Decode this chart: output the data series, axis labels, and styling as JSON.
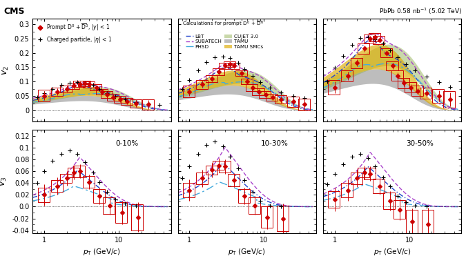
{
  "cms_label": "CMS",
  "top_right_label": "PbPb 0.58 nb$^{-1}$ (5.02 TeV)",
  "centrality_labels": [
    "0-10%",
    "10-30%",
    "30-50%"
  ],
  "v2_ylim": [
    -0.04,
    0.32
  ],
  "v3_ylim": [
    -0.045,
    0.13
  ],
  "xlim": [
    0.7,
    50
  ],
  "colors": {
    "D0": "#cc0000",
    "charged": "#000000",
    "LBT": "#2244cc",
    "PHSD": "#44aadd",
    "TAMU": "#888888",
    "SUBATECH": "#aa44cc",
    "CUJET": "#88aa44",
    "TAMU_SMC": "#ddaa00"
  },
  "v2_D0": {
    "010": {
      "pt": [
        1.0,
        1.5,
        2.0,
        2.5,
        3.0,
        3.5,
        4.0,
        5.0,
        6.0,
        7.0,
        8.5,
        10.5,
        13.0,
        17.0,
        25.0
      ],
      "val": [
        0.051,
        0.065,
        0.075,
        0.085,
        0.092,
        0.093,
        0.09,
        0.08,
        0.065,
        0.055,
        0.045,
        0.038,
        0.03,
        0.023,
        0.02
      ],
      "err": [
        0.015,
        0.012,
        0.01,
        0.01,
        0.008,
        0.008,
        0.008,
        0.008,
        0.008,
        0.01,
        0.01,
        0.01,
        0.01,
        0.012,
        0.015
      ],
      "sys": [
        0.02,
        0.015,
        0.012,
        0.012,
        0.01,
        0.01,
        0.01,
        0.01,
        0.01,
        0.012,
        0.012,
        0.012,
        0.012,
        0.015,
        0.018
      ]
    },
    "1030": {
      "pt": [
        1.0,
        1.5,
        2.0,
        2.5,
        3.0,
        3.5,
        4.0,
        5.0,
        6.0,
        7.0,
        8.5,
        10.5,
        13.0,
        17.0,
        25.0,
        35.0
      ],
      "val": [
        0.065,
        0.09,
        0.11,
        0.135,
        0.155,
        0.16,
        0.155,
        0.13,
        0.1,
        0.08,
        0.065,
        0.055,
        0.045,
        0.038,
        0.03,
        0.02
      ],
      "err": [
        0.015,
        0.012,
        0.01,
        0.01,
        0.008,
        0.008,
        0.008,
        0.008,
        0.008,
        0.01,
        0.01,
        0.01,
        0.01,
        0.012,
        0.015,
        0.02
      ],
      "sys": [
        0.02,
        0.015,
        0.012,
        0.012,
        0.01,
        0.01,
        0.01,
        0.01,
        0.01,
        0.012,
        0.012,
        0.012,
        0.012,
        0.015,
        0.018,
        0.02
      ]
    },
    "3050": {
      "pt": [
        1.0,
        1.5,
        2.0,
        2.5,
        3.0,
        3.5,
        4.0,
        5.0,
        6.0,
        7.0,
        8.5,
        10.5,
        13.0,
        17.0,
        25.0,
        35.0
      ],
      "val": [
        0.08,
        0.12,
        0.165,
        0.215,
        0.25,
        0.255,
        0.245,
        0.2,
        0.155,
        0.12,
        0.095,
        0.08,
        0.068,
        0.06,
        0.05,
        0.038
      ],
      "err": [
        0.02,
        0.015,
        0.012,
        0.012,
        0.01,
        0.01,
        0.01,
        0.01,
        0.01,
        0.012,
        0.012,
        0.012,
        0.012,
        0.015,
        0.02,
        0.025
      ],
      "sys": [
        0.025,
        0.02,
        0.018,
        0.018,
        0.015,
        0.015,
        0.015,
        0.015,
        0.015,
        0.018,
        0.018,
        0.018,
        0.018,
        0.02,
        0.025,
        0.028
      ]
    }
  },
  "v2_ch": {
    "010": {
      "pt": [
        0.8,
        1.0,
        1.3,
        1.7,
        2.2,
        2.8,
        3.5,
        4.5,
        5.5,
        7.0,
        9.0,
        12.0,
        17.0,
        25.0,
        35.0
      ],
      "val": [
        0.045,
        0.06,
        0.075,
        0.088,
        0.095,
        0.098,
        0.095,
        0.088,
        0.075,
        0.06,
        0.048,
        0.038,
        0.028,
        0.022,
        0.018
      ]
    },
    "1030": {
      "pt": [
        0.8,
        1.0,
        1.3,
        1.7,
        2.2,
        2.8,
        3.5,
        4.5,
        5.5,
        7.0,
        9.0,
        12.0,
        17.0,
        25.0,
        35.0
      ],
      "val": [
        0.075,
        0.105,
        0.14,
        0.168,
        0.185,
        0.188,
        0.182,
        0.165,
        0.145,
        0.12,
        0.098,
        0.078,
        0.062,
        0.05,
        0.042
      ]
    },
    "3050": {
      "pt": [
        0.8,
        1.0,
        1.3,
        1.7,
        2.2,
        2.8,
        3.5,
        4.5,
        5.5,
        7.0,
        9.0,
        12.0,
        17.0,
        25.0,
        35.0
      ],
      "val": [
        0.1,
        0.148,
        0.19,
        0.228,
        0.252,
        0.255,
        0.248,
        0.232,
        0.21,
        0.185,
        0.162,
        0.14,
        0.118,
        0.098,
        0.082
      ]
    }
  },
  "v3_D0": {
    "010": {
      "pt": [
        1.0,
        1.5,
        2.0,
        2.5,
        3.0,
        4.0,
        5.5,
        7.5,
        11.0,
        18.0
      ],
      "val": [
        0.02,
        0.035,
        0.048,
        0.058,
        0.06,
        0.042,
        0.018,
        0.002,
        -0.01,
        -0.018
      ],
      "err": [
        0.018,
        0.015,
        0.012,
        0.012,
        0.012,
        0.012,
        0.014,
        0.016,
        0.02,
        0.025
      ],
      "sys": [
        0.012,
        0.01,
        0.008,
        0.008,
        0.01,
        0.01,
        0.012,
        0.014,
        0.018,
        0.022
      ]
    },
    "1030": {
      "pt": [
        1.0,
        1.5,
        2.0,
        2.5,
        3.0,
        4.0,
        5.5,
        7.5,
        11.0,
        18.0
      ],
      "val": [
        0.028,
        0.048,
        0.062,
        0.07,
        0.068,
        0.045,
        0.018,
        0.002,
        -0.018,
        -0.02
      ],
      "err": [
        0.018,
        0.015,
        0.012,
        0.012,
        0.012,
        0.012,
        0.014,
        0.016,
        0.02,
        0.025
      ],
      "sys": [
        0.012,
        0.01,
        0.008,
        0.008,
        0.01,
        0.01,
        0.012,
        0.014,
        0.018,
        0.022
      ]
    },
    "3050": {
      "pt": [
        1.0,
        1.5,
        2.0,
        2.5,
        3.0,
        4.0,
        5.5,
        7.5,
        11.0,
        18.0
      ],
      "val": [
        0.012,
        0.028,
        0.048,
        0.058,
        0.056,
        0.035,
        0.01,
        -0.005,
        -0.025,
        -0.03
      ],
      "err": [
        0.02,
        0.018,
        0.015,
        0.012,
        0.012,
        0.014,
        0.016,
        0.018,
        0.022,
        0.028
      ],
      "sys": [
        0.014,
        0.012,
        0.01,
        0.008,
        0.01,
        0.012,
        0.014,
        0.016,
        0.02,
        0.025
      ]
    }
  },
  "v3_ch": {
    "010": {
      "pt": [
        0.8,
        1.0,
        1.3,
        1.7,
        2.2,
        2.8,
        3.5,
        4.5,
        5.5,
        7.0,
        9.0,
        12.0,
        17.0
      ],
      "val": [
        0.04,
        0.06,
        0.078,
        0.09,
        0.095,
        0.09,
        0.075,
        0.058,
        0.042,
        0.025,
        0.012,
        0.005,
        0.002
      ]
    },
    "1030": {
      "pt": [
        0.8,
        1.0,
        1.3,
        1.7,
        2.2,
        2.8,
        3.5,
        4.5,
        5.5,
        7.0,
        9.0,
        12.0,
        17.0
      ],
      "val": [
        0.048,
        0.068,
        0.09,
        0.105,
        0.11,
        0.102,
        0.085,
        0.065,
        0.045,
        0.025,
        0.01,
        0.002,
        0.0
      ]
    },
    "3050": {
      "pt": [
        0.8,
        1.0,
        1.3,
        1.7,
        2.2,
        2.8,
        3.5,
        4.5,
        5.5,
        7.0,
        9.0,
        12.0,
        17.0
      ],
      "val": [
        0.038,
        0.055,
        0.072,
        0.085,
        0.09,
        0.082,
        0.068,
        0.05,
        0.035,
        0.018,
        0.008,
        0.002,
        0.0
      ]
    }
  }
}
